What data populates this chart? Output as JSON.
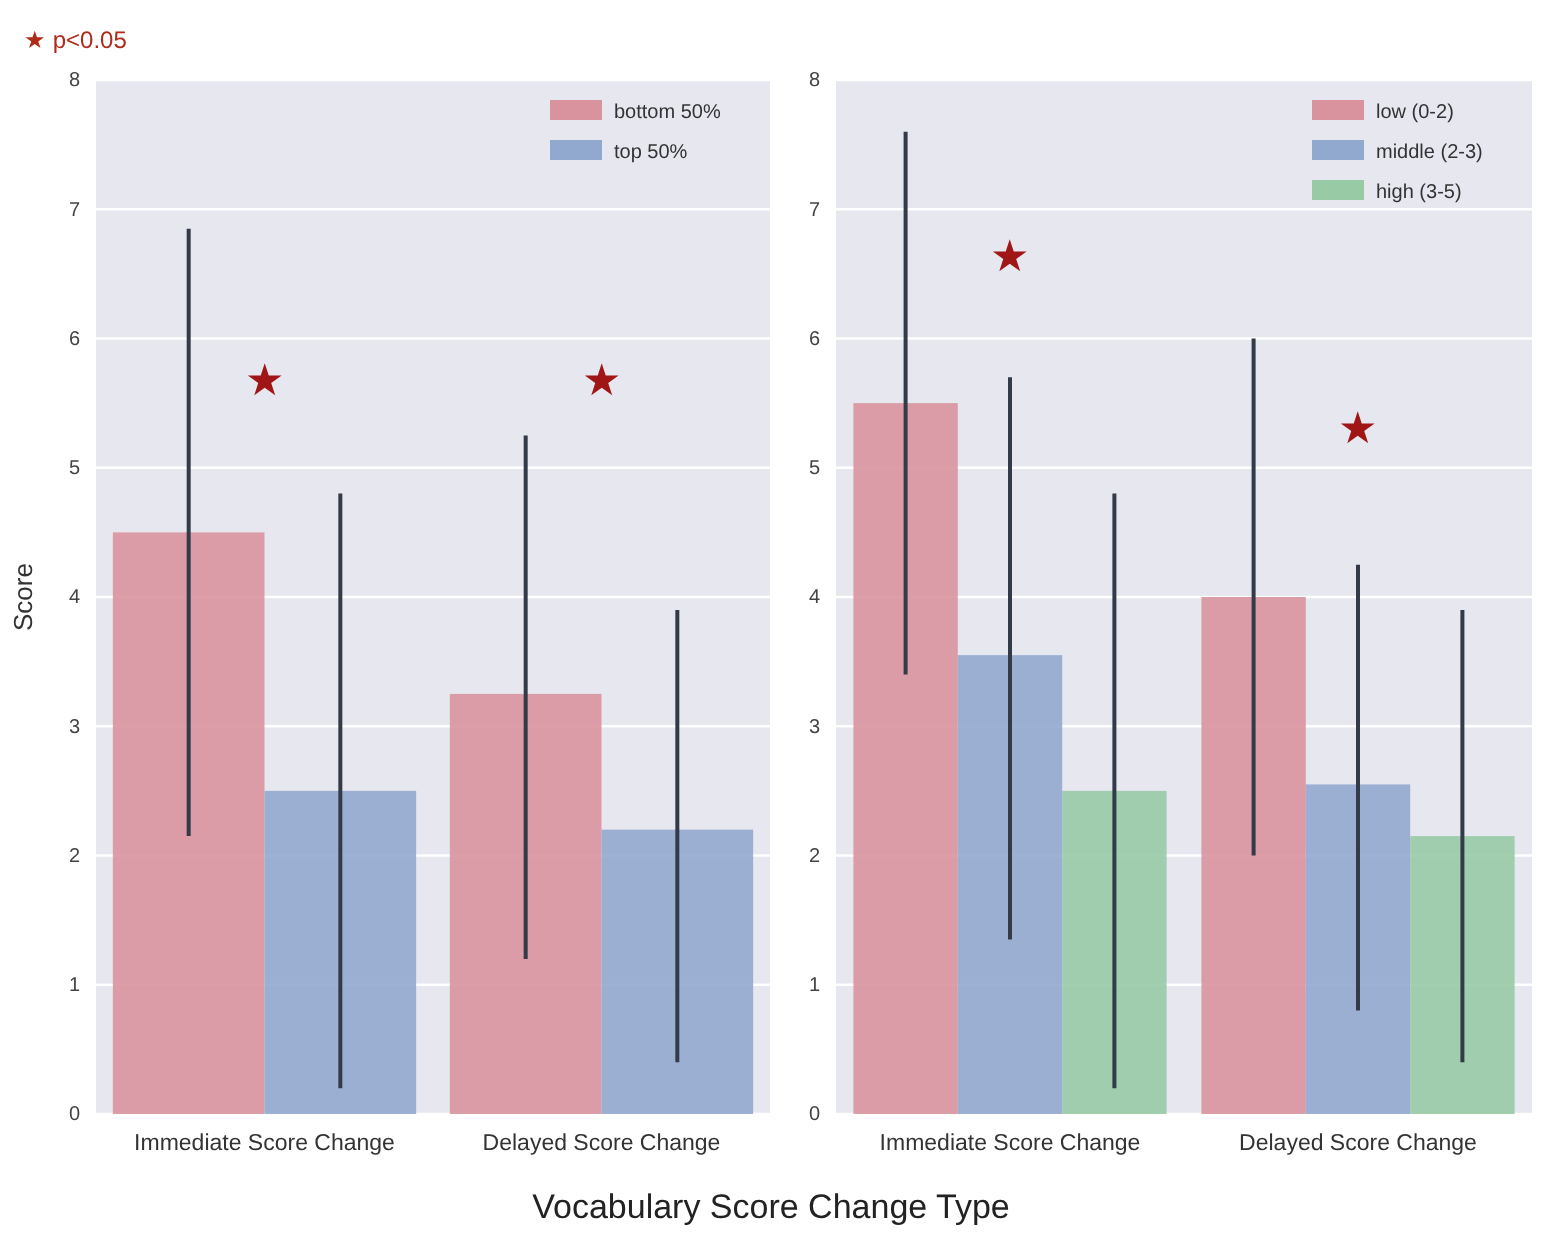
{
  "chart_data": [
    {
      "type": "bar",
      "ylabel": "Score",
      "xlabel": "Vocabulary Score Change Type",
      "categories": [
        "Immediate Score Change",
        "Delayed Score Change"
      ],
      "series": [
        {
          "name": "bottom 50%",
          "color": "#d9939f",
          "values": [
            4.5,
            3.25
          ],
          "errors": [
            [
              2.15,
              6.85
            ],
            [
              1.2,
              5.25
            ]
          ]
        },
        {
          "name": "top 50%",
          "color": "#92a9cf",
          "values": [
            2.5,
            2.2
          ],
          "errors": [
            [
              0.2,
              4.8
            ],
            [
              0.4,
              3.9
            ]
          ]
        }
      ],
      "ylim": [
        0,
        8
      ],
      "yticks": [
        0,
        1,
        2,
        3,
        4,
        5,
        6,
        7,
        8
      ],
      "grid": true,
      "legend": "top right",
      "annotations": [
        "★ p<0.05",
        "★",
        "★"
      ]
    },
    {
      "type": "bar",
      "categories": [
        "Immediate Score Change",
        "Delayed Score Change"
      ],
      "series": [
        {
          "name": "low (0-2)",
          "color": "#d9939f",
          "values": [
            5.5,
            4.0
          ],
          "errors": [
            [
              3.4,
              7.6
            ],
            [
              2.0,
              6.0
            ]
          ]
        },
        {
          "name": "middle (2-3)",
          "color": "#92a9cf",
          "values": [
            3.55,
            2.55
          ],
          "errors": [
            [
              1.35,
              5.7
            ],
            [
              0.8,
              4.25
            ]
          ]
        },
        {
          "name": "high (3-5)",
          "color": "#98caa5",
          "values": [
            2.5,
            2.15
          ],
          "errors": [
            [
              0.2,
              4.8
            ],
            [
              0.4,
              3.9
            ]
          ]
        }
      ],
      "ylim": [
        0,
        8
      ],
      "yticks": [
        0,
        1,
        2,
        3,
        4,
        5,
        6,
        7,
        8
      ],
      "grid": true,
      "legend": "top right",
      "annotations": [
        "★",
        "★"
      ]
    }
  ]
}
